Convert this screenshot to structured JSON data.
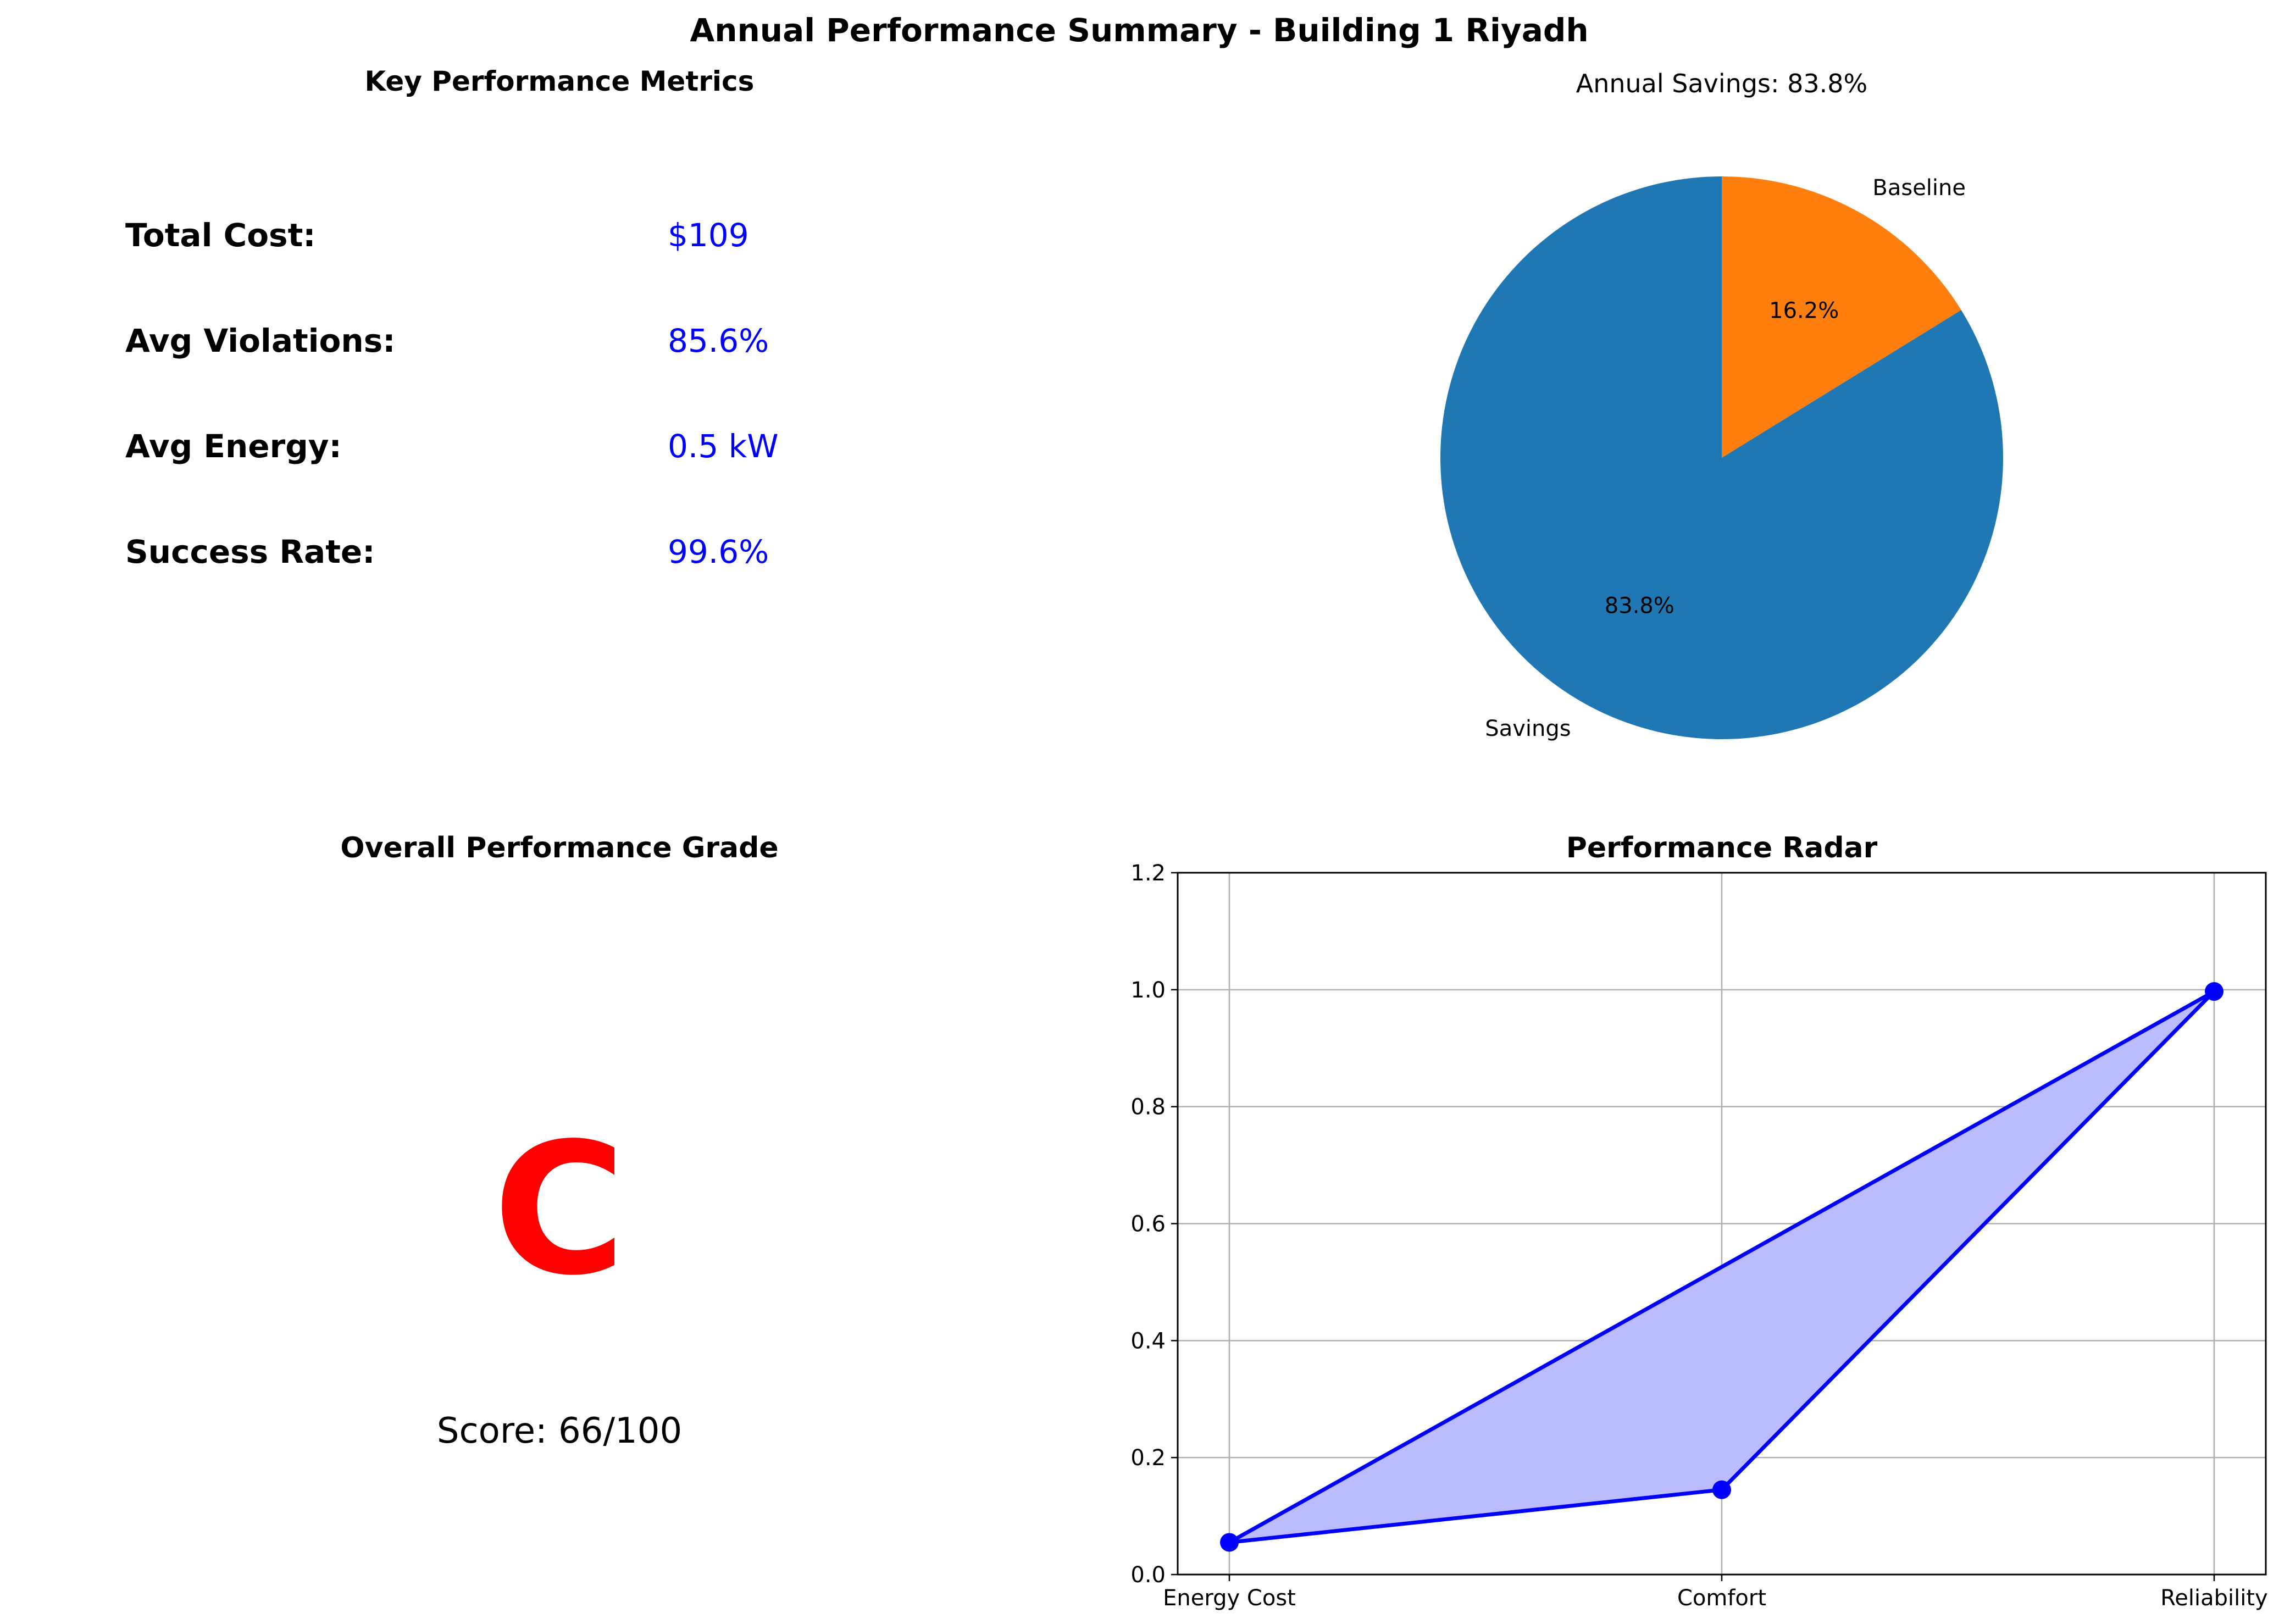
{
  "figure": {
    "title": "Annual Performance Summary - Building 1 Riyadh"
  },
  "metrics_panel": {
    "title": "Key Performance Metrics",
    "items": [
      {
        "label": "Total Cost:",
        "value": "$109"
      },
      {
        "label": "Avg Violations:",
        "value": "85.6%"
      },
      {
        "label": "Avg Energy:",
        "value": "0.5 kW"
      },
      {
        "label": "Success Rate:",
        "value": "99.6%"
      }
    ],
    "label_color": "#000000",
    "value_color": "#0000ff"
  },
  "grade_panel": {
    "title": "Overall Performance Grade",
    "grade": "C",
    "grade_color": "#ff0000",
    "score_text": "Score: 66/100"
  },
  "chart_data": [
    {
      "type": "pie",
      "title": "Annual Savings: 83.8%",
      "start_angle_deg": 90,
      "direction": "clockwise",
      "slices": [
        {
          "label": "Baseline",
          "value": 16.2,
          "pct_label": "16.2%",
          "color": "#ff7f0e"
        },
        {
          "label": "Savings",
          "value": 83.8,
          "pct_label": "83.8%",
          "color": "#1f77b4"
        }
      ]
    },
    {
      "type": "line",
      "title": "Performance Radar",
      "categories": [
        "Energy Cost",
        "Comfort",
        "Reliability"
      ],
      "series": [
        {
          "values": [
            0.055,
            0.145,
            0.997
          ],
          "color": "#0000ff",
          "fill": "#bbbbff",
          "closed": true
        }
      ],
      "ylim": [
        0.0,
        1.2
      ],
      "yticks": [
        0.0,
        0.2,
        0.4,
        0.6,
        0.8,
        1.0,
        1.2
      ],
      "ytick_labels": [
        "0.0",
        "0.2",
        "0.4",
        "0.6",
        "0.8",
        "1.0",
        "1.2"
      ],
      "grid": true
    }
  ]
}
